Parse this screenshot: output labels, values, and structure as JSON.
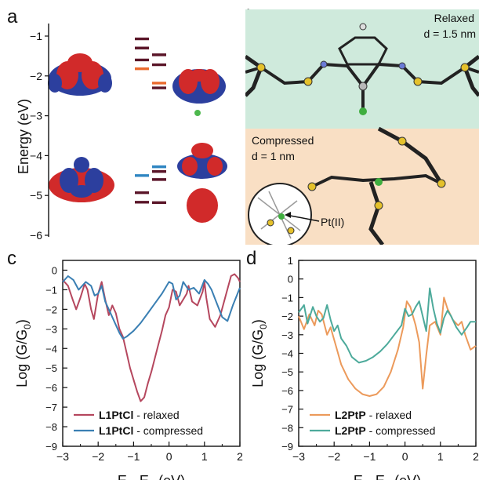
{
  "panel_labels": {
    "a": "a",
    "b": "b",
    "c": "c",
    "d": "d"
  },
  "panel_b": {
    "relaxed_title": "Relaxed",
    "relaxed_d": "d = 1.5 nm",
    "compressed_title": "Compressed",
    "compressed_d": "d = 1 nm",
    "pt_label": "Pt(II)",
    "colors": {
      "relaxed_bg": "#cfeadc",
      "compressed_bg": "#f9dfc4"
    }
  },
  "colors": {
    "c_relaxed": "#b5475e",
    "c_compressed": "#3a7fb3",
    "d_relaxed": "#ec9a5b",
    "d_compressed": "#4daa9b",
    "level_dark": "#5a1528",
    "level_orange": "#ea6a2d",
    "level_blue": "#2f86c2"
  },
  "chart_data": [
    {
      "type": "scatter",
      "panel": "a",
      "ylabel": "Energy (eV)",
      "ylim": [
        -6,
        -0.6
      ],
      "yticks": [
        "−1",
        "−2",
        "−3",
        "−4",
        "−5",
        "−6"
      ],
      "levels": [
        {
          "col": 0,
          "e": -1.07,
          "kind": "dark"
        },
        {
          "col": 0,
          "e": -1.3,
          "kind": "dark"
        },
        {
          "col": 0,
          "e": -1.6,
          "kind": "dark"
        },
        {
          "col": 0,
          "e": -1.82,
          "kind": "orange"
        },
        {
          "col": 0,
          "e": -4.5,
          "kind": "blue"
        },
        {
          "col": 0,
          "e": -4.93,
          "kind": "dark"
        },
        {
          "col": 0,
          "e": -5.17,
          "kind": "dark"
        },
        {
          "col": 1,
          "e": -1.47,
          "kind": "dark"
        },
        {
          "col": 1,
          "e": -1.72,
          "kind": "dark"
        },
        {
          "col": 1,
          "e": -2.18,
          "kind": "orange"
        },
        {
          "col": 1,
          "e": -2.3,
          "kind": "dark"
        },
        {
          "col": 1,
          "e": -4.28,
          "kind": "blue"
        },
        {
          "col": 1,
          "e": -4.4,
          "kind": "dark"
        },
        {
          "col": 1,
          "e": -4.6,
          "kind": "dark"
        },
        {
          "col": 1,
          "e": -5.18,
          "kind": "dark"
        }
      ]
    },
    {
      "type": "line",
      "panel": "c",
      "xlabel": "E - E",
      "xlabel_sub": "F",
      "xlabel_unit": " (eV)",
      "ylabel": "Log (G/G",
      "ylabel_sub": "0",
      "ylabel_end": ")",
      "xlim": [
        -3,
        2
      ],
      "ylim": [
        -9,
        0.5
      ],
      "xticks": [
        "−3",
        "−2",
        "−1",
        "0",
        "1",
        "2"
      ],
      "yticks": [
        "0",
        "−1",
        "−2",
        "−3",
        "−4",
        "−5",
        "−6",
        "−7",
        "−8",
        "−9"
      ],
      "legend_position": "bottom-left",
      "series": [
        {
          "name": "L1PtCl",
          "suffix": " - relaxed",
          "color": "#b5475e",
          "x": [
            -3,
            -2.85,
            -2.72,
            -2.62,
            -2.5,
            -2.38,
            -2.3,
            -2.2,
            -2.12,
            -2.0,
            -1.9,
            -1.8,
            -1.7,
            -1.6,
            -1.5,
            -1.4,
            -1.3,
            -1.2,
            -1.1,
            -1.0,
            -0.9,
            -0.8,
            -0.7,
            -0.6,
            -0.5,
            -0.4,
            -0.3,
            -0.2,
            -0.1,
            0,
            0.1,
            0.2,
            0.3,
            0.4,
            0.5,
            0.55,
            0.65,
            0.8,
            0.95,
            1.0,
            1.05,
            1.15,
            1.3,
            1.45,
            1.6,
            1.75,
            1.85,
            1.95,
            2
          ],
          "y": [
            -0.5,
            -0.8,
            -1.5,
            -2.0,
            -1.4,
            -0.7,
            -1.0,
            -2.0,
            -2.5,
            -1.2,
            -0.6,
            -1.5,
            -2.3,
            -1.8,
            -2.2,
            -3.0,
            -3.4,
            -4.2,
            -5.0,
            -5.6,
            -6.2,
            -6.7,
            -6.5,
            -5.8,
            -5.2,
            -4.5,
            -3.8,
            -3.1,
            -2.3,
            -1.9,
            -1.0,
            -1.1,
            -1.8,
            -1.5,
            -1.2,
            -0.8,
            -1.6,
            -1.8,
            -1.1,
            -0.6,
            -1.4,
            -2.5,
            -2.9,
            -2.3,
            -1.3,
            -0.3,
            -0.2,
            -0.4,
            -0.6
          ]
        },
        {
          "name": "L1PtCl",
          "suffix": " - compressed",
          "color": "#3a7fb3",
          "x": [
            -3,
            -2.85,
            -2.7,
            -2.55,
            -2.45,
            -2.35,
            -2.2,
            -2.1,
            -2.0,
            -1.9,
            -1.8,
            -1.7,
            -1.55,
            -1.4,
            -1.3,
            -1.2,
            -1.0,
            -0.8,
            -0.6,
            -0.4,
            -0.2,
            0,
            0.1,
            0.2,
            0.3,
            0.4,
            0.55,
            0.7,
            0.85,
            1.0,
            1.1,
            1.2,
            1.35,
            1.5,
            1.65,
            1.8,
            2
          ],
          "y": [
            -0.6,
            -0.3,
            -0.5,
            -1.0,
            -0.8,
            -0.6,
            -0.8,
            -1.3,
            -1.2,
            -0.8,
            -1.6,
            -2.0,
            -2.6,
            -3.2,
            -3.5,
            -3.4,
            -3.1,
            -2.7,
            -2.2,
            -1.7,
            -1.2,
            -0.6,
            -0.7,
            -1.5,
            -1.3,
            -0.6,
            -1.0,
            -0.9,
            -1.2,
            -0.5,
            -0.7,
            -1.0,
            -1.7,
            -2.4,
            -2.6,
            -1.8,
            -0.9
          ]
        }
      ]
    },
    {
      "type": "line",
      "panel": "d",
      "xlabel": "E - E",
      "xlabel_sub": "F",
      "xlabel_unit": " (eV)",
      "ylabel": "Log (G/G",
      "ylabel_sub": "0",
      "ylabel_end": ")",
      "xlim": [
        -3,
        2
      ],
      "ylim": [
        -9,
        1
      ],
      "xticks": [
        "−3",
        "−2",
        "−1",
        "0",
        "1",
        "2"
      ],
      "yticks": [
        "1",
        "0",
        "−1",
        "−2",
        "−3",
        "−4",
        "−5",
        "−6",
        "−7",
        "−8",
        "−9"
      ],
      "legend_position": "bottom-left",
      "series": [
        {
          "name": "L2PtP",
          "suffix": " - relaxed",
          "color": "#ec9a5b",
          "x": [
            -3,
            -2.85,
            -2.7,
            -2.55,
            -2.45,
            -2.35,
            -2.2,
            -2.1,
            -1.95,
            -1.8,
            -1.6,
            -1.4,
            -1.2,
            -1.0,
            -0.8,
            -0.6,
            -0.4,
            -0.2,
            -0.05,
            0.05,
            0.15,
            0.3,
            0.4,
            0.5,
            0.6,
            0.7,
            0.85,
            1.0,
            1.1,
            1.2,
            1.35,
            1.5,
            1.6,
            1.7,
            1.85,
            2
          ],
          "y": [
            -2.0,
            -2.7,
            -1.9,
            -2.5,
            -1.7,
            -1.9,
            -3.0,
            -2.6,
            -3.6,
            -4.6,
            -5.4,
            -5.9,
            -6.2,
            -6.3,
            -6.2,
            -5.8,
            -5.0,
            -3.8,
            -2.6,
            -1.2,
            -1.5,
            -2.5,
            -3.4,
            -5.9,
            -4.1,
            -2.5,
            -2.3,
            -3.0,
            -1.0,
            -1.6,
            -2.2,
            -2.5,
            -2.3,
            -3.0,
            -3.8,
            -3.6
          ]
        },
        {
          "name": "L2PtP",
          "suffix": " - compressed",
          "color": "#4daa9b",
          "x": [
            -3,
            -2.85,
            -2.75,
            -2.6,
            -2.5,
            -2.4,
            -2.3,
            -2.2,
            -2.1,
            -2.0,
            -1.9,
            -1.8,
            -1.65,
            -1.5,
            -1.3,
            -1.1,
            -0.9,
            -0.7,
            -0.5,
            -0.3,
            -0.1,
            0,
            0.1,
            0.2,
            0.3,
            0.4,
            0.5,
            0.6,
            0.7,
            0.8,
            0.9,
            1.0,
            1.1,
            1.2,
            1.3,
            1.45,
            1.6,
            1.75,
            1.85,
            2
          ],
          "y": [
            -1.8,
            -1.4,
            -2.4,
            -1.5,
            -2.0,
            -2.3,
            -2.1,
            -1.4,
            -2.2,
            -2.8,
            -2.5,
            -3.2,
            -3.6,
            -4.2,
            -4.5,
            -4.4,
            -4.2,
            -3.9,
            -3.5,
            -3.0,
            -2.5,
            -1.6,
            -2.0,
            -1.9,
            -1.5,
            -1.2,
            -2.0,
            -2.8,
            -0.5,
            -1.6,
            -2.4,
            -2.9,
            -2.1,
            -1.7,
            -2.0,
            -2.6,
            -3.0,
            -2.6,
            -2.3,
            -2.3
          ]
        }
      ]
    }
  ]
}
